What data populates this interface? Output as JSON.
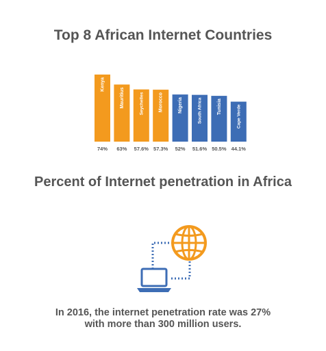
{
  "colors": {
    "orange": "#F39A1E",
    "blue": "#3D6DB5",
    "text": "#555555"
  },
  "sections": {
    "chart_title": "Top 8 African Internet Countries",
    "penetration_title": "Percent of Internet penetration in Africa"
  },
  "chart_data": {
    "type": "bar",
    "title": "Top 8 African Internet Countries",
    "categories": [
      "Kenya",
      "Mauritius",
      "Seychelles",
      "Morocco",
      "Nigeria",
      "South Africa",
      "Tunisia",
      "Cape Verde"
    ],
    "values": [
      74,
      63,
      57.6,
      57.3,
      52,
      51.6,
      50.5,
      44.1
    ],
    "value_labels": [
      "74%",
      "63%",
      "57.6%",
      "57.3%",
      "52%",
      "51.6%",
      "50.5%",
      "44.1%"
    ],
    "bar_colors": [
      "#F39A1E",
      "#F39A1E",
      "#F39A1E",
      "#F39A1E",
      "#3D6DB5",
      "#3D6DB5",
      "#3D6DB5",
      "#3D6DB5"
    ],
    "grid": false,
    "legend": "none",
    "xlabel": "",
    "ylabel": ""
  },
  "illustration": {
    "icons": [
      "globe-icon",
      "laptop-icon"
    ],
    "globe_color": "#F39A1E",
    "laptop_color": "#3D6DB5"
  },
  "caption": {
    "line1": "In 2016, the internet penetration rate was 27%",
    "line2": "with more than 300 million users."
  }
}
